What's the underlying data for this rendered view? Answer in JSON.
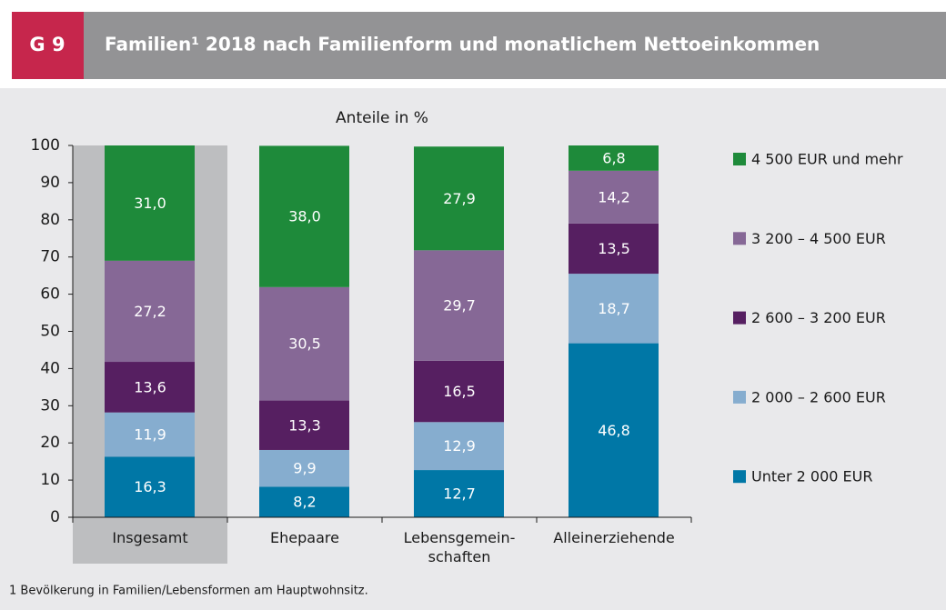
{
  "header": {
    "badge": "G 9",
    "title": "Familien¹ 2018 nach Familienform und monatlichem Nettoeinkommen"
  },
  "chart_data": {
    "type": "stacked_bar",
    "subtitle": "Anteile in %",
    "categories": [
      "Insgesamt",
      "Ehepaare",
      "Lebensgemein-\nschaften",
      "Alleinerziehende"
    ],
    "highlight": 0,
    "series": [
      {
        "name": "Unter 2 000 EUR",
        "color": "#0077a6",
        "values": [
          16.3,
          8.2,
          12.7,
          46.8
        ],
        "value_labels": [
          "16,3",
          "8,2",
          "12,7",
          "46,8"
        ]
      },
      {
        "name": "2 000 – 2 600 EUR",
        "color": "#86adcf",
        "values": [
          11.9,
          9.9,
          12.9,
          18.7
        ],
        "value_labels": [
          "11,9",
          "9,9",
          "12,9",
          "18,7"
        ]
      },
      {
        "name": "2 600 – 3 200 EUR",
        "color": "#561f61",
        "values": [
          13.6,
          13.3,
          16.5,
          13.5
        ],
        "value_labels": [
          "13,6",
          "13,3",
          "16,5",
          "13,5"
        ]
      },
      {
        "name": "3 200 – 4 500 EUR",
        "color": "#866896",
        "values": [
          27.2,
          30.5,
          29.7,
          14.2
        ],
        "value_labels": [
          "27,2",
          "30,5",
          "29,7",
          "14,2"
        ]
      },
      {
        "name": "4 500 EUR und mehr",
        "color": "#1e8a3a",
        "values": [
          31.0,
          38.0,
          27.9,
          6.8
        ],
        "value_labels": [
          "31,0",
          "38,0",
          "27,9",
          "6,8"
        ]
      }
    ],
    "ylim": [
      0,
      100
    ],
    "yticks": [
      0,
      10,
      20,
      30,
      40,
      50,
      60,
      70,
      80,
      90,
      100
    ],
    "grid": false
  },
  "footnote": "1 Bevölkerung in Familien/Lebensformen am Hauptwohnsitz."
}
